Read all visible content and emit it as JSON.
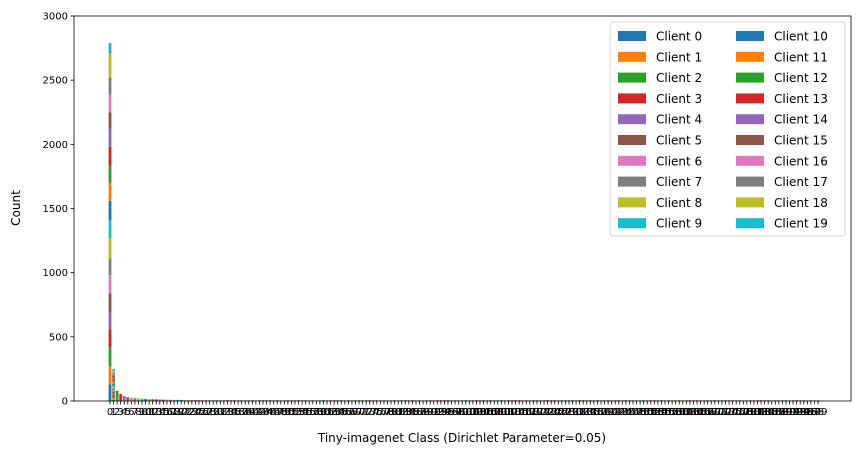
{
  "chart_data": {
    "type": "bar",
    "stacked": true,
    "title": "",
    "xlabel": "Tiny-imagenet Class (Dirichlet Parameter=0.05)",
    "ylabel": "Count",
    "ylim": [
      0,
      3000
    ],
    "yticks": [
      0,
      500,
      1000,
      1500,
      2000,
      2500,
      3000
    ],
    "class_count": 200,
    "class_step": 1,
    "legend": {
      "position": "upper-right",
      "columns": 2
    },
    "colors": [
      "#1f77b4",
      "#ff7f0e",
      "#2ca02c",
      "#d62728",
      "#9467bd",
      "#8c564b",
      "#e377c2",
      "#7f7f7f",
      "#bcbd22",
      "#17becf"
    ],
    "series_names": [
      "Client 0",
      "Client 1",
      "Client 2",
      "Client 3",
      "Client 4",
      "Client 5",
      "Client 6",
      "Client 7",
      "Client 8",
      "Client 9",
      "Client 10",
      "Client 11",
      "Client 12",
      "Client 13",
      "Client 14",
      "Client 15",
      "Client 16",
      "Client 17",
      "Client 18",
      "Client 19"
    ],
    "class0_values": [
      130,
      140,
      150,
      140,
      130,
      150,
      140,
      130,
      160,
      140,
      150,
      140,
      130,
      150,
      140,
      130,
      140,
      130,
      190,
      80
    ],
    "class1_values": [
      10,
      15,
      10,
      10,
      15,
      15,
      10,
      10,
      15,
      15,
      10,
      15,
      10,
      10,
      15,
      15,
      10,
      10,
      15,
      15
    ],
    "small_class_values": {
      "2": 80,
      "3": 55,
      "4": 40,
      "5": 30,
      "6": 25,
      "7": 22,
      "8": 20,
      "9": 18,
      "10": 16,
      "11": 15,
      "12": 14,
      "13": 13,
      "14": 12,
      "15": 11,
      "16": 10,
      "17": 10,
      "18": 9,
      "19": 9,
      "20": 8
    },
    "tail_value": 6
  }
}
